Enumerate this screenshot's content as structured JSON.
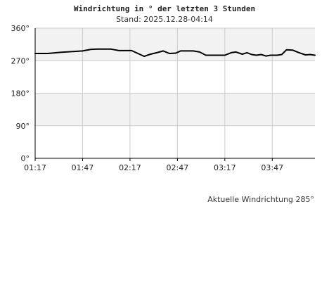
{
  "header": {
    "title": "Windrichtung in ° der letzten 3 Stunden",
    "subtitle": "Stand: 2025.12.28-04:14"
  },
  "footer": {
    "current_label": "Aktuelle Windrichtung 285°"
  },
  "colors": {
    "band_shaded": "#f2f2f2",
    "band_plain": "#ffffff",
    "grid": "#cccccc",
    "axis": "#000000",
    "line": "#000000"
  },
  "chart_data": {
    "type": "line",
    "title": "Windrichtung in ° der letzten 3 Stunden",
    "xlabel": "",
    "ylabel": "",
    "ylim": [
      0,
      360
    ],
    "xlim": [
      "01:17",
      "04:14"
    ],
    "grid": true,
    "yticks": [
      {
        "value": 0,
        "label": "0°"
      },
      {
        "value": 90,
        "label": "90°"
      },
      {
        "value": 180,
        "label": "180°"
      },
      {
        "value": 270,
        "label": "270°"
      },
      {
        "value": 360,
        "label": "360°"
      }
    ],
    "xticks": [
      "01:17",
      "01:47",
      "02:17",
      "02:47",
      "03:17",
      "03:47"
    ],
    "series": [
      {
        "x": [
          "01:17",
          "01:25",
          "01:33",
          "01:40",
          "01:47",
          "01:52",
          "01:56",
          "02:05",
          "02:10",
          "02:14",
          "02:18",
          "02:22",
          "02:26",
          "02:30",
          "02:34",
          "02:38",
          "02:42",
          "02:46",
          "02:49",
          "02:53",
          "02:57",
          "03:01",
          "03:05",
          "03:08",
          "03:12",
          "03:17",
          "03:21",
          "03:24",
          "03:28",
          "03:31",
          "03:34",
          "03:37",
          "03:40",
          "03:43",
          "03:46",
          "03:50",
          "03:53",
          "03:56",
          "04:00",
          "04:04",
          "04:08",
          "04:11",
          "04:14"
        ],
        "y": [
          290,
          290,
          293,
          295,
          297,
          301,
          302,
          302,
          298,
          298,
          298,
          290,
          282,
          288,
          292,
          297,
          290,
          291,
          297,
          297,
          297,
          294,
          285,
          285,
          285,
          285,
          292,
          294,
          288,
          292,
          287,
          285,
          287,
          283,
          285,
          285,
          287,
          300,
          299,
          292,
          286,
          287,
          285
        ]
      }
    ]
  }
}
